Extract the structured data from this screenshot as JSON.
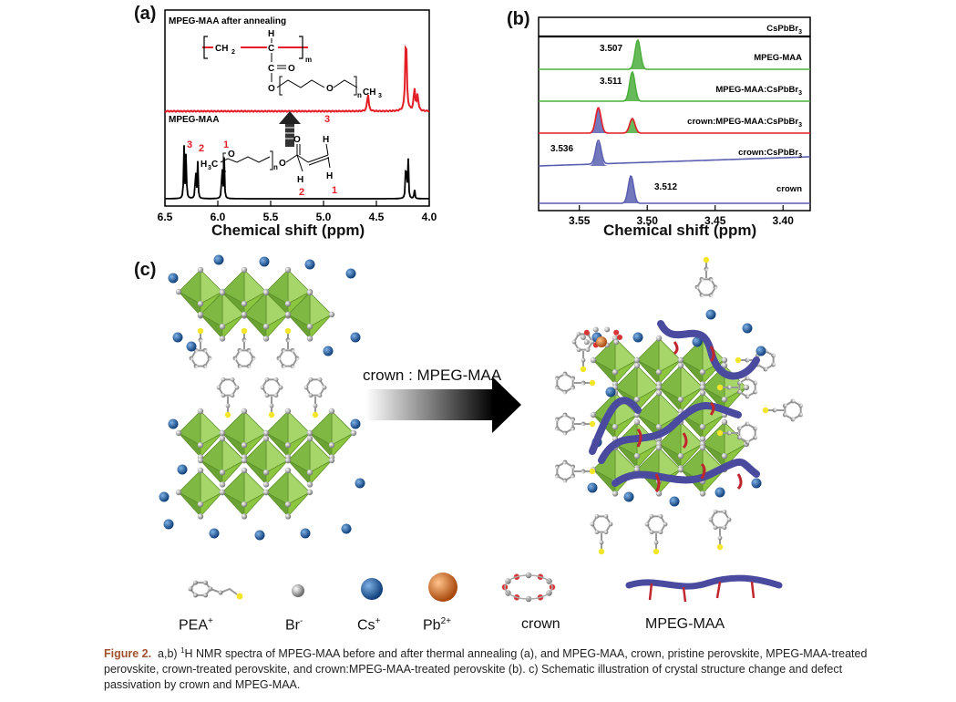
{
  "panel_a": {
    "letter": "(a)",
    "top_trace_label": "MPEG-MAA after annealing",
    "bottom_trace_label": "MPEG-MAA",
    "peak_numbers_bottom": [
      "3",
      "2",
      "1"
    ],
    "structure_labels": {
      "m": "m",
      "n": "n",
      "ch2": "CH",
      "ch3": "CH",
      "h3c": "H",
      "o": "O",
      "c": "C",
      "h": "H",
      "nums": [
        "3",
        "2",
        "1"
      ]
    },
    "colors": {
      "top": "#e41e26",
      "bottom": "#000000"
    }
  },
  "panel_b": {
    "letter": "(b)",
    "trace_labels": [
      "CsPbBr",
      "MPEG-MAA",
      "MPEG-MAA:CsPbBr",
      "crown:MPEG-MAA:CsPbBr",
      "crown:CsPbBr",
      "crown"
    ],
    "peak_labels": [
      "3.507",
      "3.511",
      "3.536",
      "3.512"
    ],
    "subscript": "3",
    "colors": {
      "black": "#000000",
      "green": "#4cae3c",
      "red": "#e41e26",
      "blue": "#5b5fb0"
    }
  },
  "chart_data": [
    {
      "type": "line",
      "title": "",
      "xlabel": "Chemical shift (ppm)",
      "ylabel": "",
      "xlim": [
        6.5,
        4.0
      ],
      "x_ticks": [
        "6.5",
        "6.0",
        "5.5",
        "5.0",
        "4.5",
        "4.0"
      ],
      "series": [
        {
          "name": "MPEG-MAA after annealing",
          "peaks_ppm": [
            4.58,
            4.22,
            4.14,
            4.11
          ]
        },
        {
          "name": "MPEG-MAA",
          "peaks_ppm": [
            6.32,
            6.3,
            6.21,
            6.19,
            5.96,
            5.94,
            4.22,
            4.2,
            4.14
          ]
        }
      ]
    },
    {
      "type": "line",
      "title": "",
      "xlabel": "Chemical shift (ppm)",
      "ylabel": "",
      "xlim": [
        3.58,
        3.38
      ],
      "x_ticks": [
        "3.55",
        "3.50",
        "3.45",
        "3.40"
      ],
      "series": [
        {
          "name": "CsPbBr3",
          "peaks_ppm": []
        },
        {
          "name": "MPEG-MAA",
          "peaks_ppm": [
            3.507
          ]
        },
        {
          "name": "MPEG-MAA:CsPbBr3",
          "peaks_ppm": [
            3.511
          ]
        },
        {
          "name": "crown:MPEG-MAA:CsPbBr3",
          "peaks_ppm": [
            3.536,
            3.511
          ]
        },
        {
          "name": "crown:CsPbBr3",
          "peaks_ppm": [
            3.536
          ]
        },
        {
          "name": "crown",
          "peaks_ppm": [
            3.512
          ]
        }
      ]
    }
  ],
  "panel_c": {
    "letter": "(c)",
    "arrow_label": "crown : MPEG-MAA",
    "legend": {
      "pea": "PEA",
      "pea_sup": "+",
      "br": "Br",
      "br_sup": "-",
      "cs": "Cs",
      "cs_sup": "+",
      "pb": "Pb",
      "pb_sup": "2+",
      "crown": "crown",
      "mpeg": "MPEG-MAA"
    },
    "colors": {
      "octahedron": "#8cc63f",
      "cs": "#1f5fa8",
      "pb": "#e07b26",
      "br": "#9a9a9a",
      "s_atom": "#f3e52a",
      "polymer": "#4a4a9e",
      "side_chain": "#c0262d"
    }
  },
  "caption": {
    "label": "Figure 2.",
    "text_1": "a,b)",
    "sup": "1",
    "text_2": "H NMR spectra of MPEG-MAA before and after thermal annealing (a), and MPEG-MAA, crown, pristine perovskite, MPEG-MAA-treated perovskite, crown-treated perovskite, and crown:MPEG-MAA-treated perovskite (b). c) Schematic illustration of crystal structure change and defect passivation by crown and MPEG-MAA."
  }
}
